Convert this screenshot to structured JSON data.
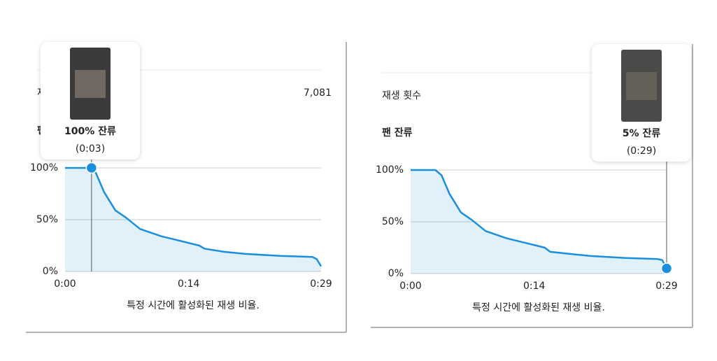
{
  "chart_data": [
    {
      "type": "line",
      "header_label": "재생 횟수",
      "header_value": "7,081",
      "title": "팬 잔류",
      "x": [
        0,
        3,
        3.5,
        4.4,
        5.7,
        6.9,
        8.5,
        10.9,
        13.3,
        15.2,
        15.8,
        18,
        20.4,
        24.4,
        28,
        28.5,
        29
      ],
      "series": [
        {
          "color": "#1a8fdc",
          "values": [
            100,
            100,
            95,
            77,
            59,
            52,
            41,
            34,
            29,
            25,
            22,
            19,
            17,
            15,
            14,
            12,
            5
          ]
        }
      ],
      "xlim": [
        0,
        29
      ],
      "xticks": [
        {
          "value": 0,
          "label": "0:00"
        },
        {
          "value": 14,
          "label": "0:14"
        },
        {
          "value": 29,
          "label": "0:29"
        }
      ],
      "ylim": [
        0,
        100
      ],
      "yticks": [
        {
          "value": 0,
          "label": "0%"
        },
        {
          "value": 50,
          "label": "50%"
        },
        {
          "value": 100,
          "label": "100%"
        }
      ],
      "grid": true,
      "annotation": {
        "x": 3,
        "y": 100,
        "label": "100% 잔류",
        "time": "(0:03)"
      },
      "caption": "특정 시간에 활성화된 재생 비율."
    },
    {
      "type": "line",
      "header_label": "재생 횟수",
      "title": "팬 잔류",
      "x": [
        0,
        2.8,
        3.5,
        4.4,
        5.7,
        6.9,
        8.5,
        10.9,
        13.3,
        15.2,
        15.8,
        18,
        20.4,
        24.4,
        28,
        28.5,
        29
      ],
      "series": [
        {
          "color": "#1a8fdc",
          "values": [
            100,
            100,
            95,
            77,
            59,
            52,
            41,
            34,
            29,
            25,
            21,
            19,
            17,
            15,
            14,
            13,
            5
          ]
        }
      ],
      "xlim": [
        0,
        29
      ],
      "xticks": [
        {
          "value": 0,
          "label": "0:00"
        },
        {
          "value": 14,
          "label": "0:14"
        },
        {
          "value": 29,
          "label": "0:29"
        }
      ],
      "ylim": [
        0,
        100
      ],
      "yticks": [
        {
          "value": 0,
          "label": "0%"
        },
        {
          "value": 50,
          "label": "50%"
        },
        {
          "value": 100,
          "label": "100%"
        }
      ],
      "grid": true,
      "annotation": {
        "x": 29,
        "y": 5,
        "label": "5% 잔류",
        "time": "(0:29)"
      },
      "caption": "특정 시간에 활성화된 재생 비율."
    }
  ]
}
